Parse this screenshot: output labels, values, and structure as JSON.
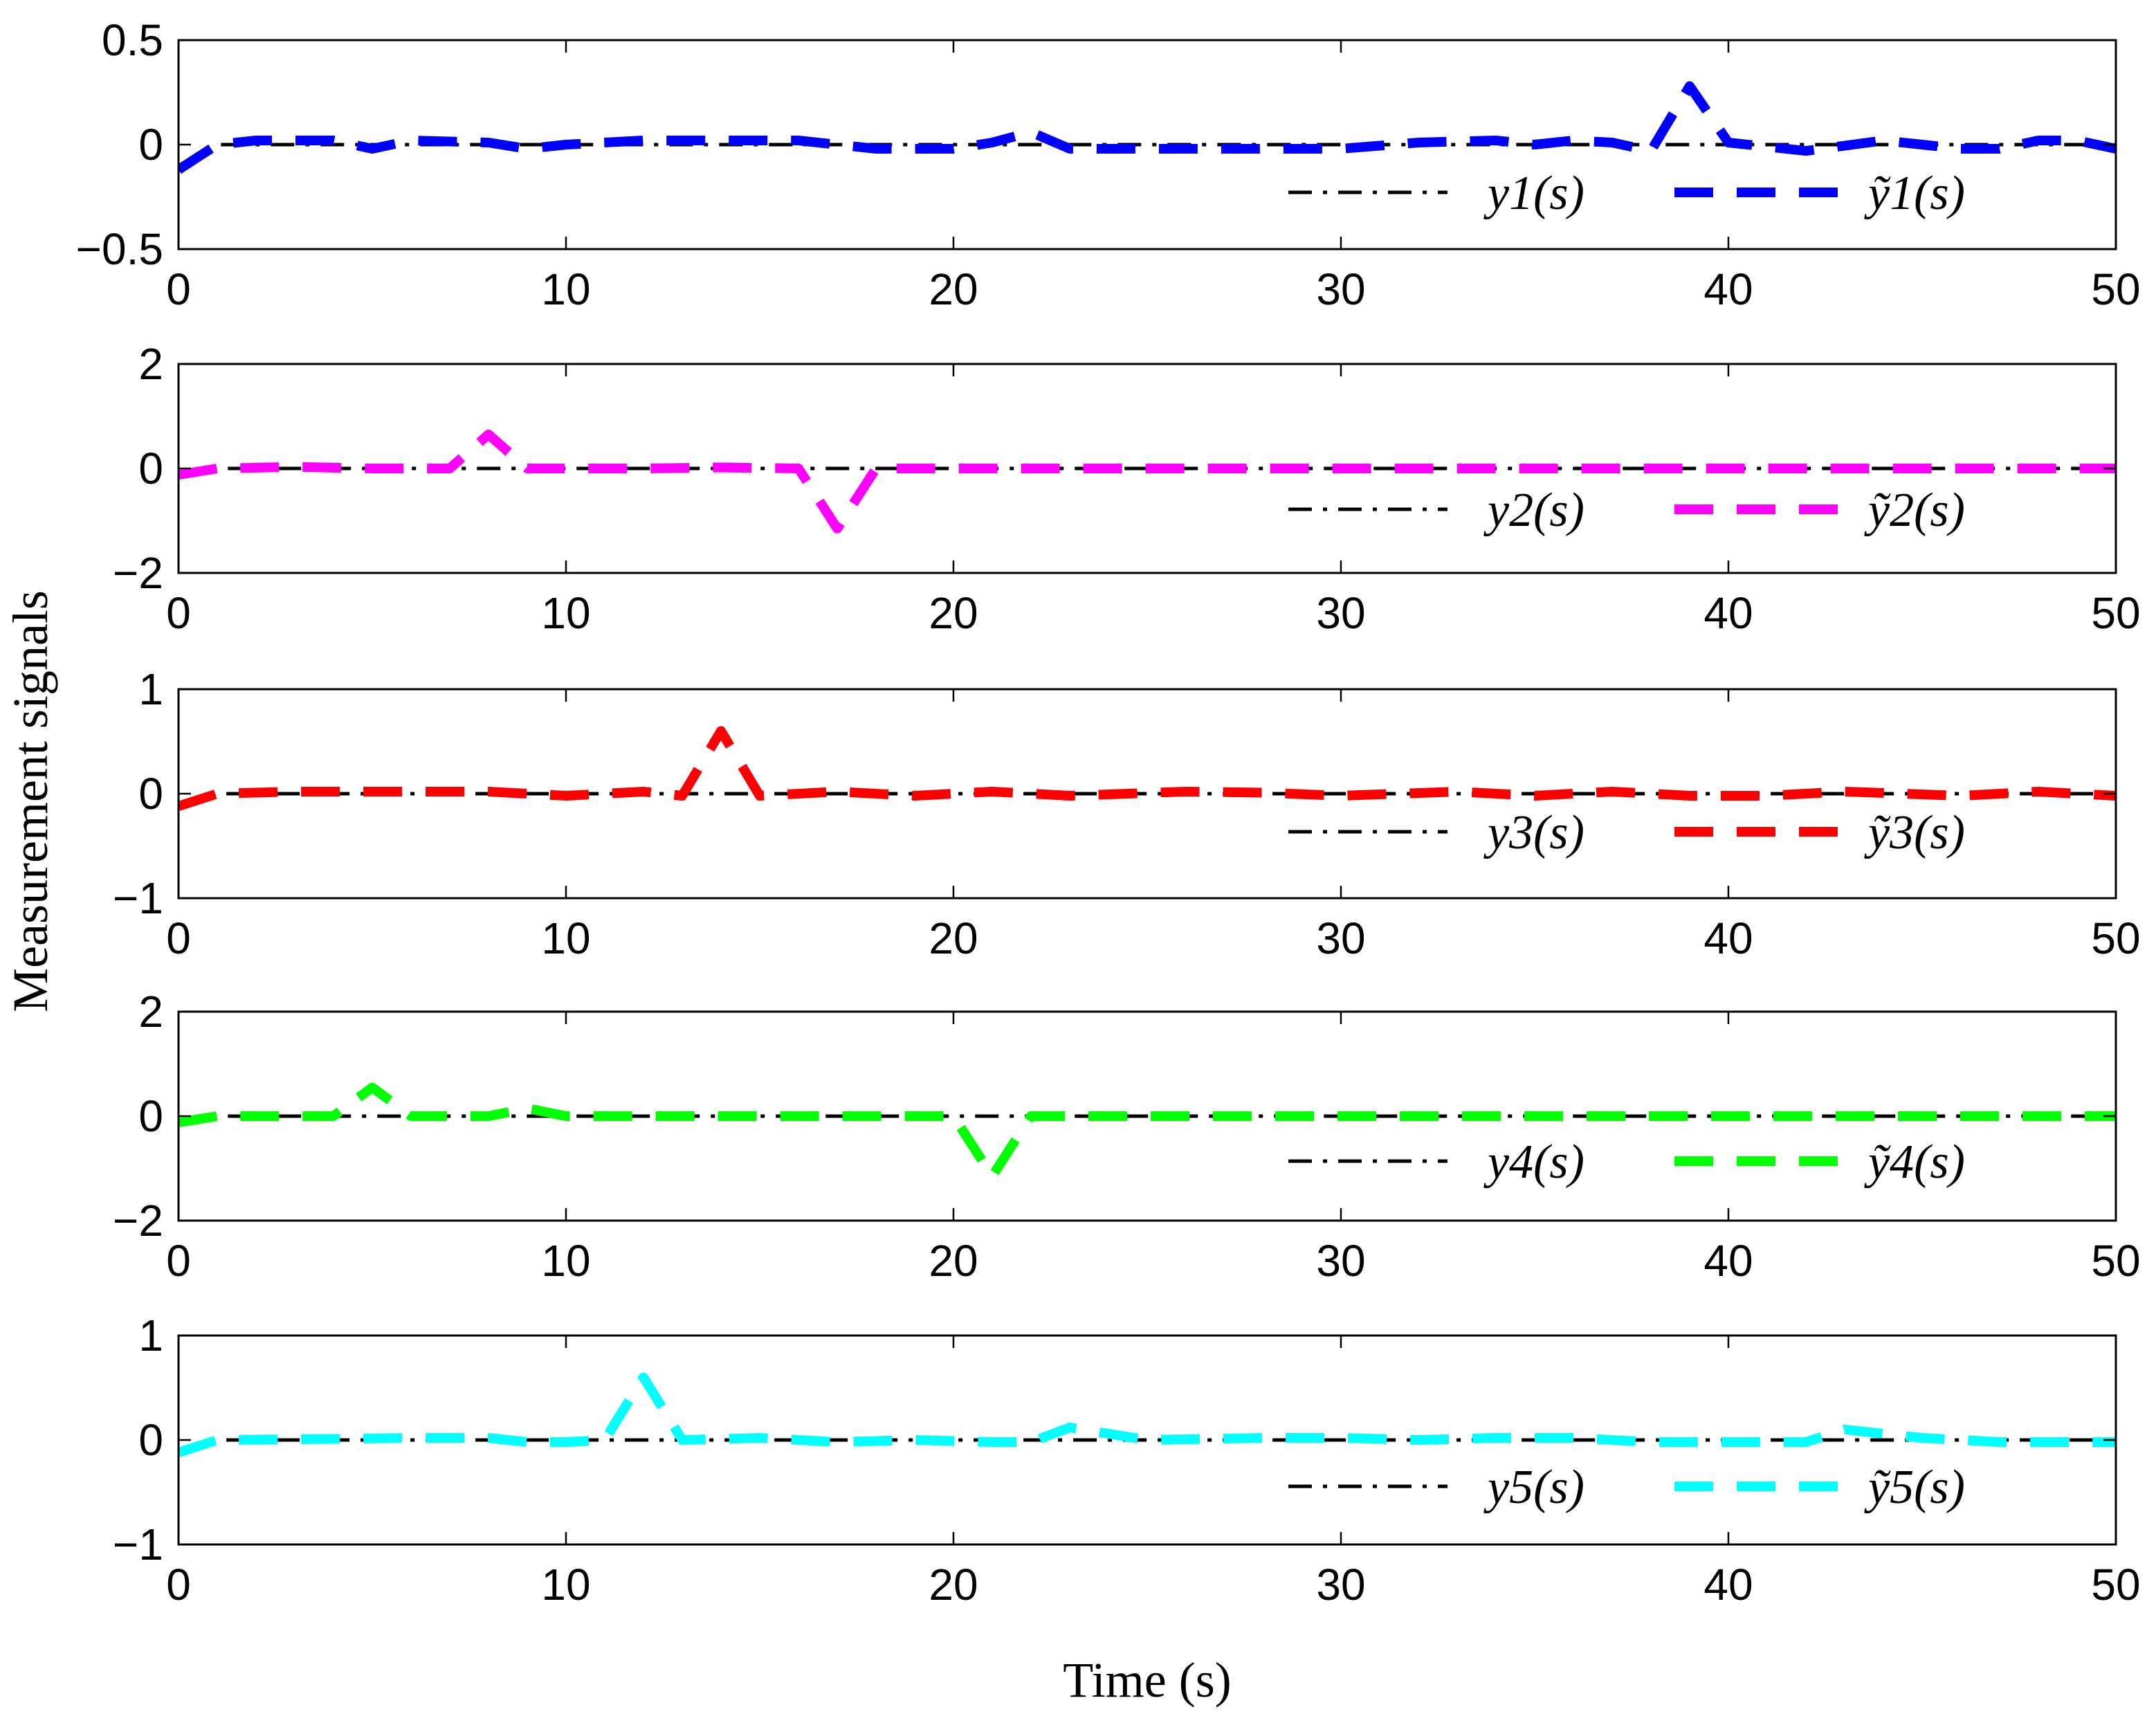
{
  "figure": {
    "ylabel": "Measurement signals",
    "xlabel": "Time (s)"
  },
  "chart_data": [
    {
      "type": "line",
      "xlim": [
        0,
        50
      ],
      "ylim": [
        -0.5,
        0.5
      ],
      "xticks": [
        "0",
        "10",
        "20",
        "30",
        "40",
        "50"
      ],
      "yticks": [
        "0.5",
        "0",
        "−0.5"
      ],
      "ytick_values": [
        0.5,
        0,
        -0.5
      ],
      "legend_position": "bottom-right",
      "series": [
        {
          "name": "y1(s)",
          "color": "#000000",
          "style": "dashdot",
          "x": [
            0,
            1,
            50
          ],
          "y": [
            -0.12,
            0,
            0
          ]
        },
        {
          "name": "ỹ1(s)",
          "color": "#0000ff",
          "style": "dashed",
          "x": [
            0,
            1,
            2,
            4,
            5,
            6,
            8,
            9,
            10,
            12,
            14,
            16,
            18,
            20,
            21,
            22,
            23,
            25,
            28,
            30,
            32,
            34,
            35,
            36,
            37,
            38,
            39,
            40,
            42,
            44,
            45,
            46,
            47,
            48,
            49,
            50
          ],
          "y": [
            -0.12,
            0,
            0.02,
            0.02,
            -0.02,
            0.02,
            0.01,
            -0.02,
            0,
            0.02,
            0.02,
            0.02,
            -0.02,
            -0.02,
            0.01,
            0.06,
            -0.02,
            -0.02,
            -0.02,
            -0.02,
            0.01,
            0.02,
            0,
            0.02,
            0.01,
            -0.03,
            0.28,
            0.01,
            -0.03,
            0.02,
            0,
            -0.02,
            -0.02,
            0.02,
            0.02,
            -0.02
          ]
        }
      ]
    },
    {
      "type": "line",
      "xlim": [
        0,
        50
      ],
      "ylim": [
        -2,
        2
      ],
      "xticks": [
        "0",
        "10",
        "20",
        "30",
        "40",
        "50"
      ],
      "yticks": [
        "2",
        "0",
        "−2"
      ],
      "ytick_values": [
        2,
        0,
        -2
      ],
      "legend_position": "bottom-right",
      "series": [
        {
          "name": "y2(s)",
          "color": "#000000",
          "style": "dashdot",
          "x": [
            0,
            1,
            50
          ],
          "y": [
            -0.12,
            0,
            0
          ]
        },
        {
          "name": "ỹ2(s)",
          "color": "#ff00ff",
          "style": "dashed",
          "x": [
            0,
            1,
            3,
            5,
            7,
            8,
            9,
            10,
            12,
            14,
            16,
            17,
            18,
            20,
            25,
            30,
            35,
            40,
            45,
            50
          ],
          "y": [
            -0.12,
            0,
            0.03,
            0,
            0,
            0.65,
            0,
            0,
            0,
            0.02,
            0,
            -1.15,
            0,
            0,
            0,
            0,
            0,
            0,
            0,
            0
          ]
        }
      ]
    },
    {
      "type": "line",
      "xlim": [
        0,
        50
      ],
      "ylim": [
        -1,
        1
      ],
      "xticks": [
        "0",
        "10",
        "20",
        "30",
        "40",
        "50"
      ],
      "yticks": [
        "1",
        "0",
        "−1"
      ],
      "ytick_values": [
        1,
        0,
        -1
      ],
      "legend_position": "bottom-right",
      "series": [
        {
          "name": "y3(s)",
          "color": "#000000",
          "style": "dashdot",
          "x": [
            0,
            1,
            50
          ],
          "y": [
            -0.12,
            0,
            0
          ]
        },
        {
          "name": "ỹ3(s)",
          "color": "#ff0000",
          "style": "dashed",
          "x": [
            0,
            1,
            3,
            6,
            8,
            10,
            12,
            13,
            14,
            15,
            17,
            19,
            21,
            23,
            26,
            28,
            30,
            33,
            35,
            37,
            39,
            41,
            43,
            46,
            48,
            50
          ],
          "y": [
            -0.12,
            0,
            0.02,
            0.02,
            0.02,
            -0.02,
            0.02,
            -0.02,
            0.6,
            -0.02,
            0.02,
            -0.02,
            0.02,
            -0.02,
            0.02,
            0.01,
            -0.02,
            0.02,
            -0.02,
            0.02,
            -0.02,
            -0.02,
            0.02,
            -0.02,
            0.02,
            -0.02
          ]
        }
      ]
    },
    {
      "type": "line",
      "xlim": [
        0,
        50
      ],
      "ylim": [
        -2,
        2
      ],
      "xticks": [
        "0",
        "10",
        "20",
        "30",
        "40",
        "50"
      ],
      "yticks": [
        "2",
        "0",
        "−2"
      ],
      "ytick_values": [
        2,
        0,
        -2
      ],
      "legend_position": "bottom-right",
      "series": [
        {
          "name": "y4(s)",
          "color": "#000000",
          "style": "dashdot",
          "x": [
            0,
            1,
            50
          ],
          "y": [
            -0.12,
            0,
            0
          ]
        },
        {
          "name": "ỹ4(s)",
          "color": "#00ff00",
          "style": "dashed",
          "x": [
            0,
            1,
            4,
            5,
            6,
            8,
            9,
            10,
            15,
            20,
            21,
            22,
            25,
            30,
            35,
            40,
            45,
            50
          ],
          "y": [
            -0.12,
            0,
            0,
            0.55,
            0,
            0,
            0.15,
            0,
            0,
            0,
            -1.15,
            0,
            0,
            0,
            0,
            0,
            0,
            0
          ]
        }
      ]
    },
    {
      "type": "line",
      "xlim": [
        0,
        50
      ],
      "ylim": [
        -1,
        1
      ],
      "xticks": [
        "0",
        "10",
        "20",
        "30",
        "40",
        "50"
      ],
      "yticks": [
        "1",
        "0",
        "−1"
      ],
      "ytick_values": [
        1,
        0,
        -1
      ],
      "legend_position": "bottom-right",
      "series": [
        {
          "name": "y5(s)",
          "color": "#000000",
          "style": "dashdot",
          "x": [
            0,
            1,
            50
          ],
          "y": [
            -0.12,
            0,
            0
          ]
        },
        {
          "name": "ỹ5(s)",
          "color": "#00ffff",
          "style": "dashed",
          "x": [
            0,
            1,
            4,
            6,
            8,
            9,
            10,
            11,
            12,
            13,
            15,
            17,
            19,
            21,
            22,
            23,
            25,
            28,
            30,
            32,
            34,
            36,
            38,
            40,
            42,
            43,
            45,
            47,
            50
          ],
          "y": [
            -0.12,
            0,
            0.01,
            0.02,
            0.02,
            -0.02,
            -0.02,
            0,
            0.6,
            0,
            0.02,
            -0.02,
            0,
            -0.02,
            -0.02,
            0.12,
            0,
            0.02,
            0.02,
            0,
            0.02,
            0.02,
            -0.02,
            -0.02,
            -0.02,
            0.1,
            0.02,
            -0.02,
            -0.02
          ]
        }
      ]
    }
  ]
}
